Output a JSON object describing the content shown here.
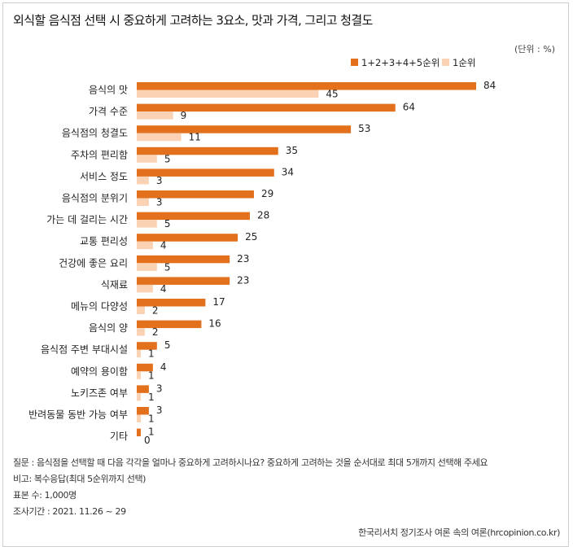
{
  "header": {
    "title": "외식할 음식점 선택 시 중요하게 고려하는 3요소, 맛과 가격, 그리고 청결도",
    "unit": "(단위 : %)"
  },
  "colors": {
    "total": "#e2701c",
    "first": "#fbd2b4"
  },
  "chart_data": {
    "type": "bar",
    "orientation": "horizontal",
    "categories": [
      "음식의 맛",
      "가격 수준",
      "음식점의 청결도",
      "주차의 편리함",
      "서비스 정도",
      "음식점의 분위기",
      "가는 데 걸리는 시간",
      "교통 편리성",
      "건강에 좋은 요리",
      "식재료",
      "메뉴의 다양성",
      "음식의 양",
      "음식점 주변 부대시설",
      "예약의 용이함",
      "노키즈존 여부",
      "반려동물 동반 가능 여부",
      "기타"
    ],
    "series": [
      {
        "name": "1+2+3+4+5순위",
        "color": "#e2701c",
        "values": [
          84,
          64,
          53,
          35,
          34,
          29,
          28,
          25,
          23,
          23,
          17,
          16,
          5,
          4,
          3,
          3,
          1
        ]
      },
      {
        "name": "1순위",
        "color": "#fbd2b4",
        "values": [
          45,
          9,
          11,
          5,
          3,
          3,
          5,
          4,
          5,
          4,
          2,
          2,
          1,
          1,
          1,
          1,
          0
        ]
      }
    ],
    "legend_position": "top-right",
    "xlim": [
      0,
      84
    ]
  },
  "footer": {
    "question": "질문 : 음식점을 선택할 때 다음 각각을 얼마나 중요하게 고려하시나요? 중요하게 고려하는 것을 순서대로 최대 5개까지 선택해 주세요",
    "note": "비고: 복수응답(최대 5순위까지 선택)",
    "sample": "표본 수: 1,000명",
    "period": "조사기간 : 2021. 11.26 ~ 29",
    "source": "한국리서치 정기조사 여론 속의 여론(hrcopinion.co.kr)"
  }
}
